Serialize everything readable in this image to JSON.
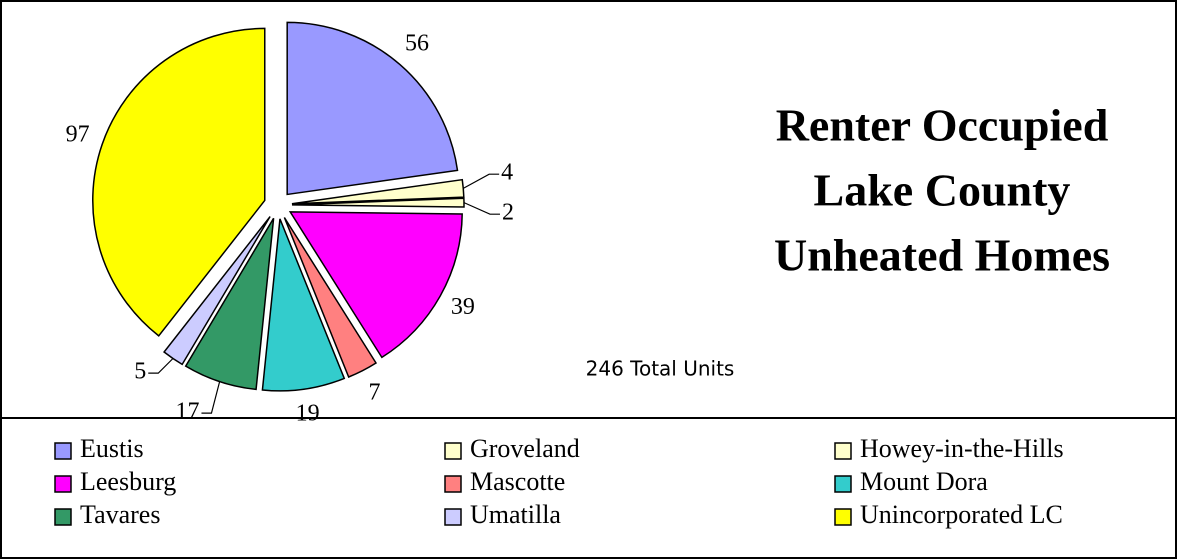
{
  "chart_data": {
    "type": "pie",
    "title": [
      "Renter Occupied",
      "Lake County",
      "Unheated Homes"
    ],
    "annotation": "246 Total Units",
    "categories": [
      "Eustis",
      "Groveland",
      "Howey-in-the-Hills",
      "Leesburg",
      "Mascotte",
      "Mount Dora",
      "Tavares",
      "Umatilla",
      "Unincorporated LC"
    ],
    "values": [
      56,
      4,
      2,
      39,
      7,
      19,
      17,
      5,
      97
    ],
    "colors": [
      "#9999ff",
      "#ffffcc",
      "#ffffcc",
      "#ff00ff",
      "#ff8080",
      "#33cccc",
      "#339966",
      "#ccccff",
      "#ffff00"
    ],
    "legend": "bottom"
  }
}
